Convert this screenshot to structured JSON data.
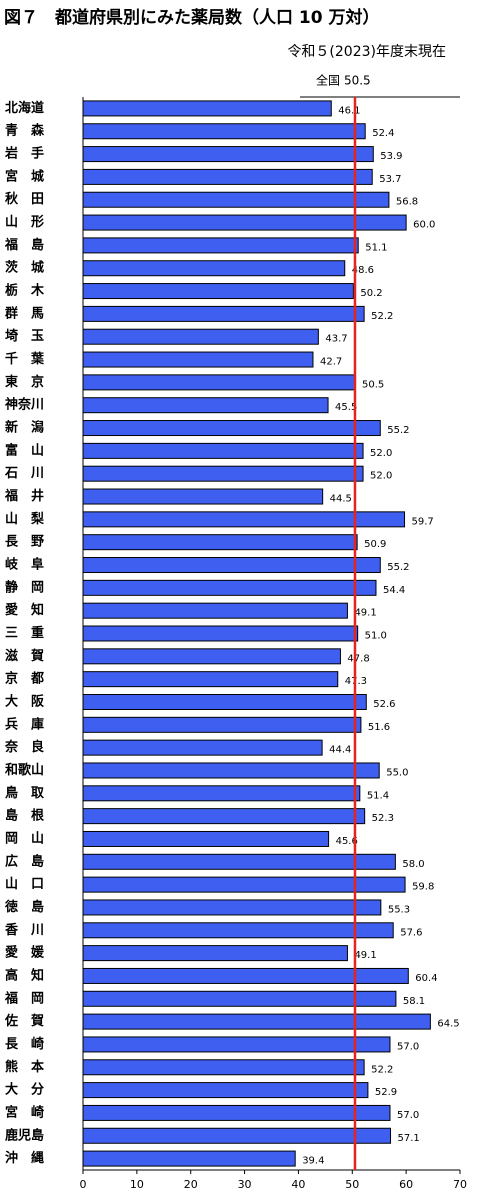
{
  "chart_data": {
    "type": "bar",
    "orientation": "horizontal",
    "title": "図７　都道府県別にみた薬局数（人口 10 万対）",
    "subtitle": "令和５(2023)年度末現在",
    "categories": [
      "北海道",
      "青　森",
      "岩　手",
      "宮　城",
      "秋　田",
      "山　形",
      "福　島",
      "茨　城",
      "栃　木",
      "群　馬",
      "埼　玉",
      "千　葉",
      "東　京",
      "神奈川",
      "新　潟",
      "富　山",
      "石　川",
      "福　井",
      "山　梨",
      "長　野",
      "岐　阜",
      "静　岡",
      "愛　知",
      "三　重",
      "滋　賀",
      "京　都",
      "大　阪",
      "兵　庫",
      "奈　良",
      "和歌山",
      "鳥　取",
      "島　根",
      "岡　山",
      "広　島",
      "山　口",
      "徳　島",
      "香　川",
      "愛　媛",
      "高　知",
      "福　岡",
      "佐　賀",
      "長　崎",
      "熊　本",
      "大　分",
      "宮　崎",
      "鹿児島",
      "沖　縄"
    ],
    "values": [
      46.1,
      52.4,
      53.9,
      53.7,
      56.8,
      60.0,
      51.1,
      48.6,
      50.2,
      52.2,
      43.7,
      42.7,
      50.5,
      45.5,
      55.2,
      52.0,
      52.0,
      44.5,
      59.7,
      50.9,
      55.2,
      54.4,
      49.1,
      51.0,
      47.8,
      47.3,
      52.6,
      51.6,
      44.4,
      55.0,
      51.4,
      52.3,
      45.6,
      58.0,
      59.8,
      55.3,
      57.6,
      49.1,
      60.4,
      58.1,
      64.5,
      57.0,
      52.2,
      52.9,
      57.0,
      57.1,
      39.4
    ],
    "value_labels": [
      "46.1",
      "52.4",
      "53.9",
      "53.7",
      "56.8",
      "60.0",
      "51.1",
      "48.6",
      "50.2",
      "52.2",
      "43.7",
      "42.7",
      "50.5",
      "45.5",
      "55.2",
      "52.0",
      "52.0",
      "44.5",
      "59.7",
      "50.9",
      "55.2",
      "54.4",
      "49.1",
      "51.0",
      "47.8",
      "47.3",
      "52.6",
      "51.6",
      "44.4",
      "55.0",
      "51.4",
      "52.3",
      "45.6",
      "58.0",
      "59.8",
      "55.3",
      "57.6",
      "49.1",
      "60.4",
      "58.1",
      "64.5",
      "57.0",
      "52.2",
      "52.9",
      "57.0",
      "57.1",
      "39.4"
    ],
    "color": "#3f5ff0",
    "xlim": [
      0,
      70
    ],
    "xticks": [
      0,
      10,
      20,
      30,
      40,
      50,
      60,
      70
    ],
    "reference_line": {
      "name": "全国",
      "value": 50.5,
      "label": "50.5",
      "color": "#e8231f"
    }
  }
}
